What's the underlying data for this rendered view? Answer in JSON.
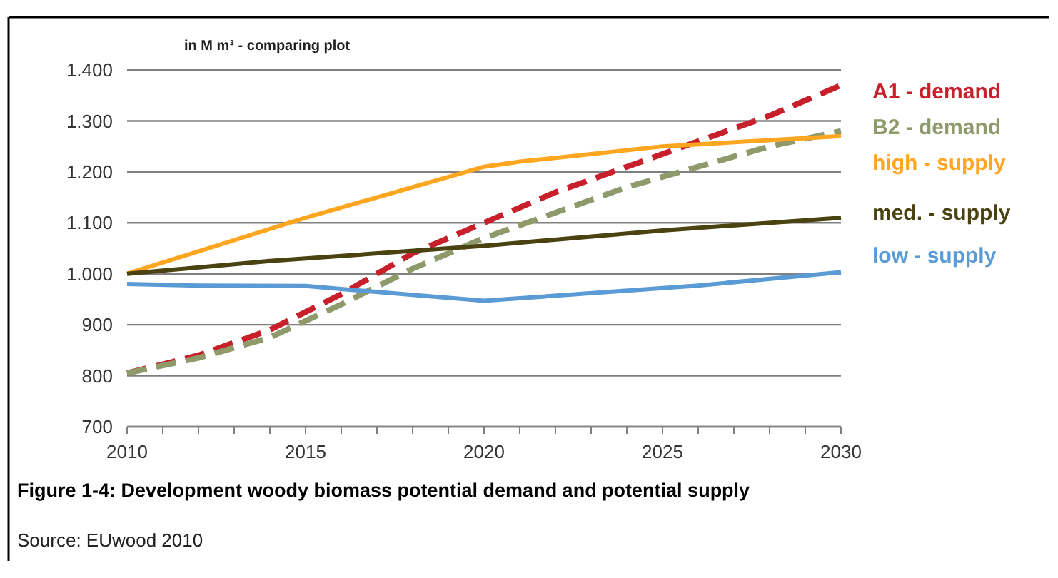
{
  "chart_data": {
    "type": "line",
    "title": "Figure 1-4: Development woody biomass potential demand and potential supply",
    "ylabel": "in M m³ - comparing plot",
    "annotations": [
      "Source: EUwood 2010"
    ],
    "xlim": [
      2010,
      2030
    ],
    "xticks": [
      2010,
      2015,
      2020,
      2025,
      2030
    ],
    "ylim": [
      700,
      1400
    ],
    "yticks": [
      700,
      800,
      900,
      {
        "value": 1000,
        "label": "1.000"
      },
      {
        "value": 1100,
        "label": "1.100"
      },
      {
        "value": 1200,
        "label": "1.200"
      },
      {
        "value": 1300,
        "label": "1.300"
      },
      {
        "value": 1400,
        "label": "1.400"
      }
    ],
    "grid": "y",
    "legend": "right",
    "marker": "none",
    "series": [
      {
        "name": "A1 - demand",
        "color": "#c8202a",
        "line_style": "dashed",
        "x": [
          2010,
          2012,
          2014,
          2016,
          2018,
          2020,
          2022,
          2024,
          2026,
          2028,
          2030
        ],
        "values": [
          805,
          840,
          890,
          960,
          1040,
          1100,
          1160,
          1210,
          1260,
          1310,
          1370
        ]
      },
      {
        "name": "B2 - demand",
        "color": "#8f9a6a",
        "line_style": "dashed",
        "x": [
          2010,
          2012,
          2014,
          2016,
          2018,
          2020,
          2022,
          2024,
          2026,
          2028,
          2030
        ],
        "values": [
          805,
          835,
          875,
          940,
          1010,
          1070,
          1120,
          1170,
          1210,
          1250,
          1280
        ]
      },
      {
        "name": "high - supply",
        "color": "#ffa621",
        "line_style": "solid",
        "x": [
          2010,
          2015,
          2020,
          2021,
          2025,
          2030
        ],
        "values": [
          1000,
          1110,
          1210,
          1220,
          1250,
          1270
        ]
      },
      {
        "name": "med. - supply",
        "color": "#4a4210",
        "line_style": "solid",
        "x": [
          2010,
          2014,
          2020,
          2025,
          2030
        ],
        "values": [
          1000,
          1025,
          1055,
          1085,
          1110
        ]
      },
      {
        "name": "low - supply",
        "color": "#5b9bd5",
        "line_style": "solid",
        "x": [
          2010,
          2012,
          2015,
          2020,
          2026,
          2030
        ],
        "values": [
          980,
          977,
          976,
          947,
          977,
          1003
        ]
      }
    ]
  }
}
